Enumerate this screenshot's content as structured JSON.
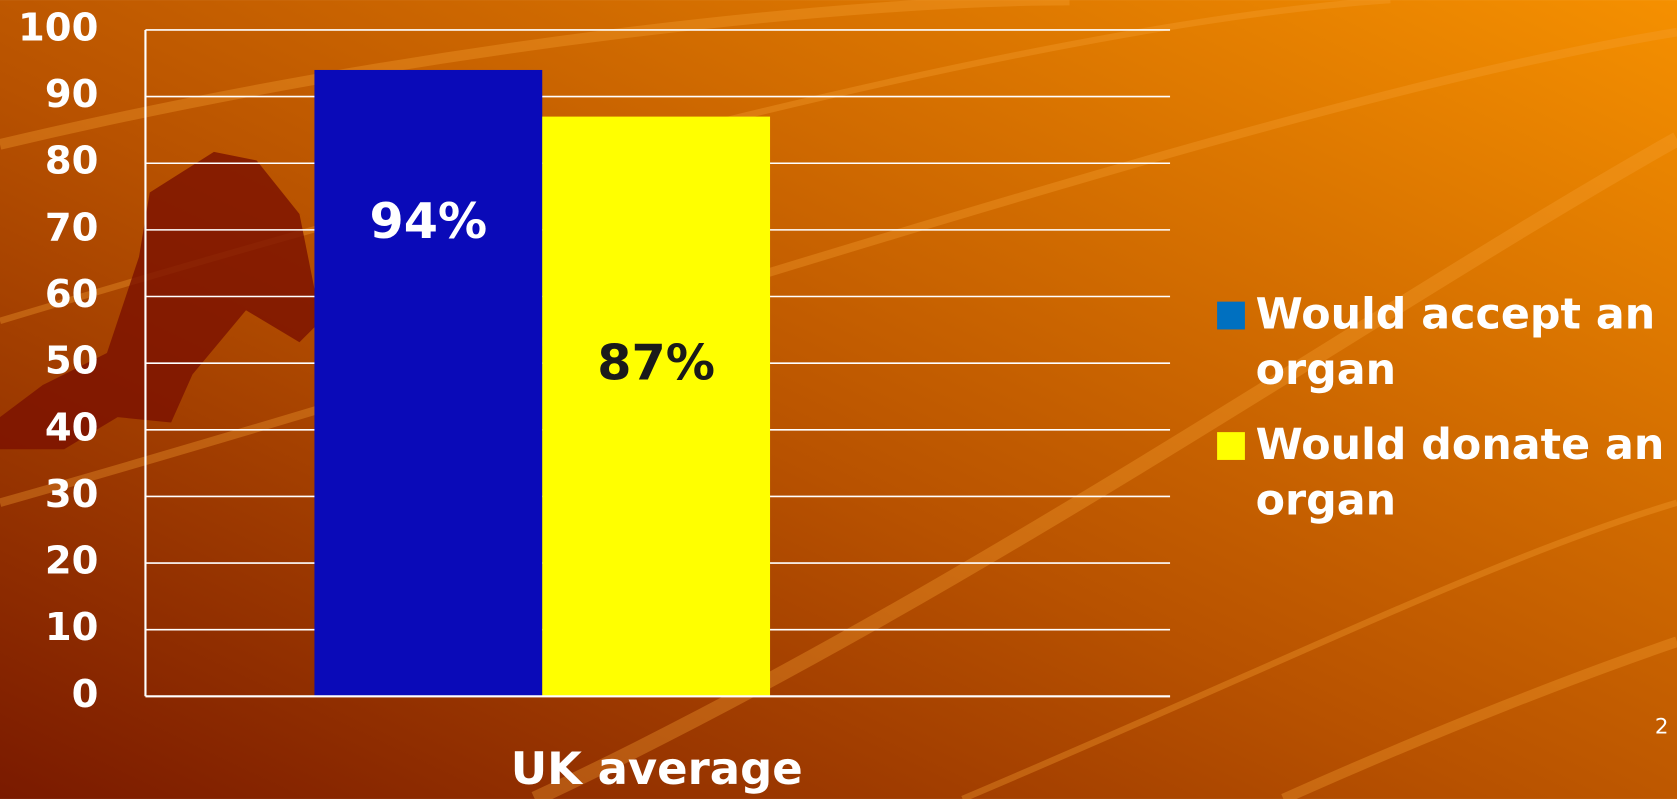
{
  "chart_data": {
    "type": "bar",
    "categories": [
      "UK average"
    ],
    "series": [
      {
        "name": "Would accept an organ",
        "color": "#0a0ab8",
        "legend_color": "#0070c0",
        "values": [
          94
        ],
        "value_labels": [
          "94%"
        ],
        "label_color": "#ffffff"
      },
      {
        "name": "Would donate an organ",
        "color": "#ffff00",
        "legend_color": "#ffff00",
        "values": [
          87
        ],
        "value_labels": [
          "87%"
        ],
        "label_color": "#1a1a1a"
      }
    ],
    "ylim": [
      0,
      100
    ],
    "yticks": [
      0,
      10,
      20,
      30,
      40,
      50,
      60,
      70,
      80,
      90,
      100
    ],
    "grid": true,
    "legend": "right"
  },
  "slide_number": "2"
}
